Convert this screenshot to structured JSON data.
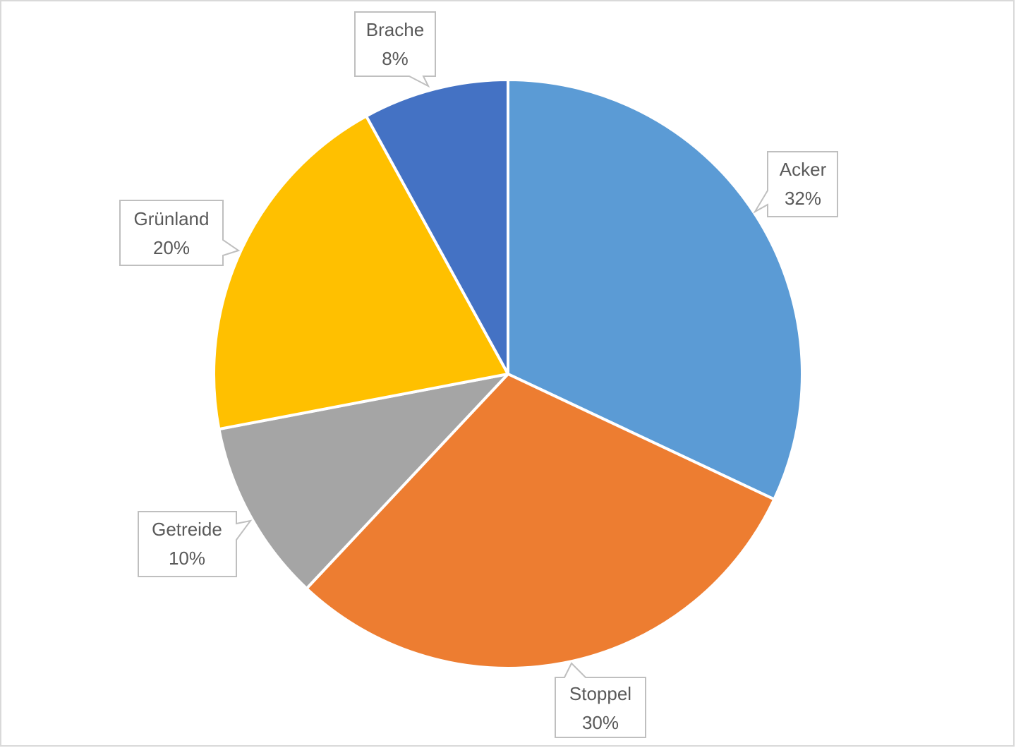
{
  "chart_data": {
    "type": "pie",
    "categories": [
      "Acker",
      "Stoppel",
      "Getreide",
      "Grünland",
      "Brache"
    ],
    "values": [
      32,
      30,
      10,
      20,
      8
    ],
    "value_labels": [
      "32%",
      "30%",
      "10%",
      "20%",
      "8%"
    ],
    "colors": [
      "#5b9bd5",
      "#ed7d31",
      "#a5a5a5",
      "#ffc000",
      "#4472c4"
    ]
  }
}
